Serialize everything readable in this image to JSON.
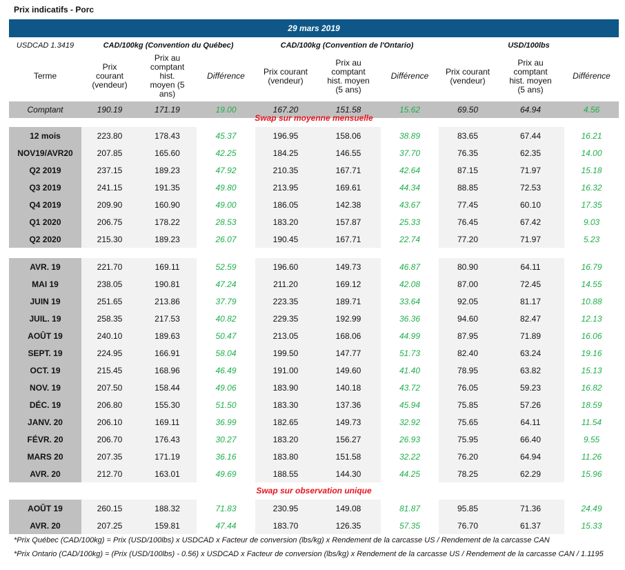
{
  "title": "Prix indicatifs - Porc",
  "date": "29 mars 2019",
  "usdcad": "USDCAD 1.3419",
  "groups": [
    "CAD/100kg (Convention du Québec)",
    "CAD/100kg (Convention de l'Ontario)",
    "USD/100lbs"
  ],
  "headers": {
    "terme": "Terme",
    "prix_courant_q": "Prix courant (vendeur)",
    "hist": "Prix au comptant hist. moyen (5 ans)",
    "diff": "Différence",
    "prix_courant": "Prix courant (vendeur)"
  },
  "comptant": [
    "Comptant",
    "190.19",
    "171.19",
    "19.00",
    "167.20",
    "151.58",
    "15.62",
    "69.50",
    "64.94",
    "4.56"
  ],
  "section1_label": "Swap sur moyenne mensuelle",
  "section2_label": "Swap sur observation unique",
  "block1": [
    [
      "12 mois",
      "223.80",
      "178.43",
      "45.37",
      "196.95",
      "158.06",
      "38.89",
      "83.65",
      "67.44",
      "16.21"
    ],
    [
      "NOV19/AVR20",
      "207.85",
      "165.60",
      "42.25",
      "184.25",
      "146.55",
      "37.70",
      "76.35",
      "62.35",
      "14.00"
    ],
    [
      "Q2 2019",
      "237.15",
      "189.23",
      "47.92",
      "210.35",
      "167.71",
      "42.64",
      "87.15",
      "71.97",
      "15.18"
    ],
    [
      "Q3 2019",
      "241.15",
      "191.35",
      "49.80",
      "213.95",
      "169.61",
      "44.34",
      "88.85",
      "72.53",
      "16.32"
    ],
    [
      "Q4 2019",
      "209.90",
      "160.90",
      "49.00",
      "186.05",
      "142.38",
      "43.67",
      "77.45",
      "60.10",
      "17.35"
    ],
    [
      "Q1 2020",
      "206.75",
      "178.22",
      "28.53",
      "183.20",
      "157.87",
      "25.33",
      "76.45",
      "67.42",
      "9.03"
    ],
    [
      "Q2 2020",
      "215.30",
      "189.23",
      "26.07",
      "190.45",
      "167.71",
      "22.74",
      "77.20",
      "71.97",
      "5.23"
    ]
  ],
  "block2": [
    [
      "AVR. 19",
      "221.70",
      "169.11",
      "52.59",
      "196.60",
      "149.73",
      "46.87",
      "80.90",
      "64.11",
      "16.79"
    ],
    [
      "MAI 19",
      "238.05",
      "190.81",
      "47.24",
      "211.20",
      "169.12",
      "42.08",
      "87.00",
      "72.45",
      "14.55"
    ],
    [
      "JUIN 19",
      "251.65",
      "213.86",
      "37.79",
      "223.35",
      "189.71",
      "33.64",
      "92.05",
      "81.17",
      "10.88"
    ],
    [
      "JUIL. 19",
      "258.35",
      "217.53",
      "40.82",
      "229.35",
      "192.99",
      "36.36",
      "94.60",
      "82.47",
      "12.13"
    ],
    [
      "AOÛT 19",
      "240.10",
      "189.63",
      "50.47",
      "213.05",
      "168.06",
      "44.99",
      "87.95",
      "71.89",
      "16.06"
    ],
    [
      "SEPT. 19",
      "224.95",
      "166.91",
      "58.04",
      "199.50",
      "147.77",
      "51.73",
      "82.40",
      "63.24",
      "19.16"
    ],
    [
      "OCT. 19",
      "215.45",
      "168.96",
      "46.49",
      "191.00",
      "149.60",
      "41.40",
      "78.95",
      "63.82",
      "15.13"
    ],
    [
      "NOV. 19",
      "207.50",
      "158.44",
      "49.06",
      "183.90",
      "140.18",
      "43.72",
      "76.05",
      "59.23",
      "16.82"
    ],
    [
      "DÉC. 19",
      "206.80",
      "155.30",
      "51.50",
      "183.30",
      "137.36",
      "45.94",
      "75.85",
      "57.26",
      "18.59"
    ],
    [
      "JANV. 20",
      "206.10",
      "169.11",
      "36.99",
      "182.65",
      "149.73",
      "32.92",
      "75.65",
      "64.11",
      "11.54"
    ],
    [
      "FÉVR. 20",
      "206.70",
      "176.43",
      "30.27",
      "183.20",
      "156.27",
      "26.93",
      "75.95",
      "66.40",
      "9.55"
    ],
    [
      "MARS 20",
      "207.35",
      "171.19",
      "36.16",
      "183.80",
      "151.58",
      "32.22",
      "76.20",
      "64.94",
      "11.26"
    ],
    [
      "AVR. 20",
      "212.70",
      "163.01",
      "49.69",
      "188.55",
      "144.30",
      "44.25",
      "78.25",
      "62.29",
      "15.96"
    ]
  ],
  "block3": [
    [
      "AOÛT 19",
      "260.15",
      "188.32",
      "71.83",
      "230.95",
      "149.08",
      "81.87",
      "95.85",
      "71.36",
      "24.49"
    ],
    [
      "AVR. 20",
      "207.25",
      "159.81",
      "47.44",
      "183.70",
      "126.35",
      "57.35",
      "76.70",
      "61.37",
      "15.33"
    ]
  ],
  "notes": [
    "*Prix Québec (CAD/100kg) = Prix (USD/100lbs) x USDCAD x Facteur de conversion (lbs/kg) x Rendement de la carcasse US / Rendement de la carcasse CAN",
    "*Prix Ontario (CAD/100kg) = (Prix (USD/100lbs) - 0.56) x USDCAD x Facteur de conversion (lbs/kg) x Rendement de la carcasse US / Rendement de la carcasse CAN / 1.1195"
  ],
  "colors": {
    "header_bar": "#0e5788",
    "positive": "#1fae4b",
    "section_label": "#e8141e",
    "term_bg": "#c0c0c0",
    "cell_bg": "#f2f2f2"
  }
}
